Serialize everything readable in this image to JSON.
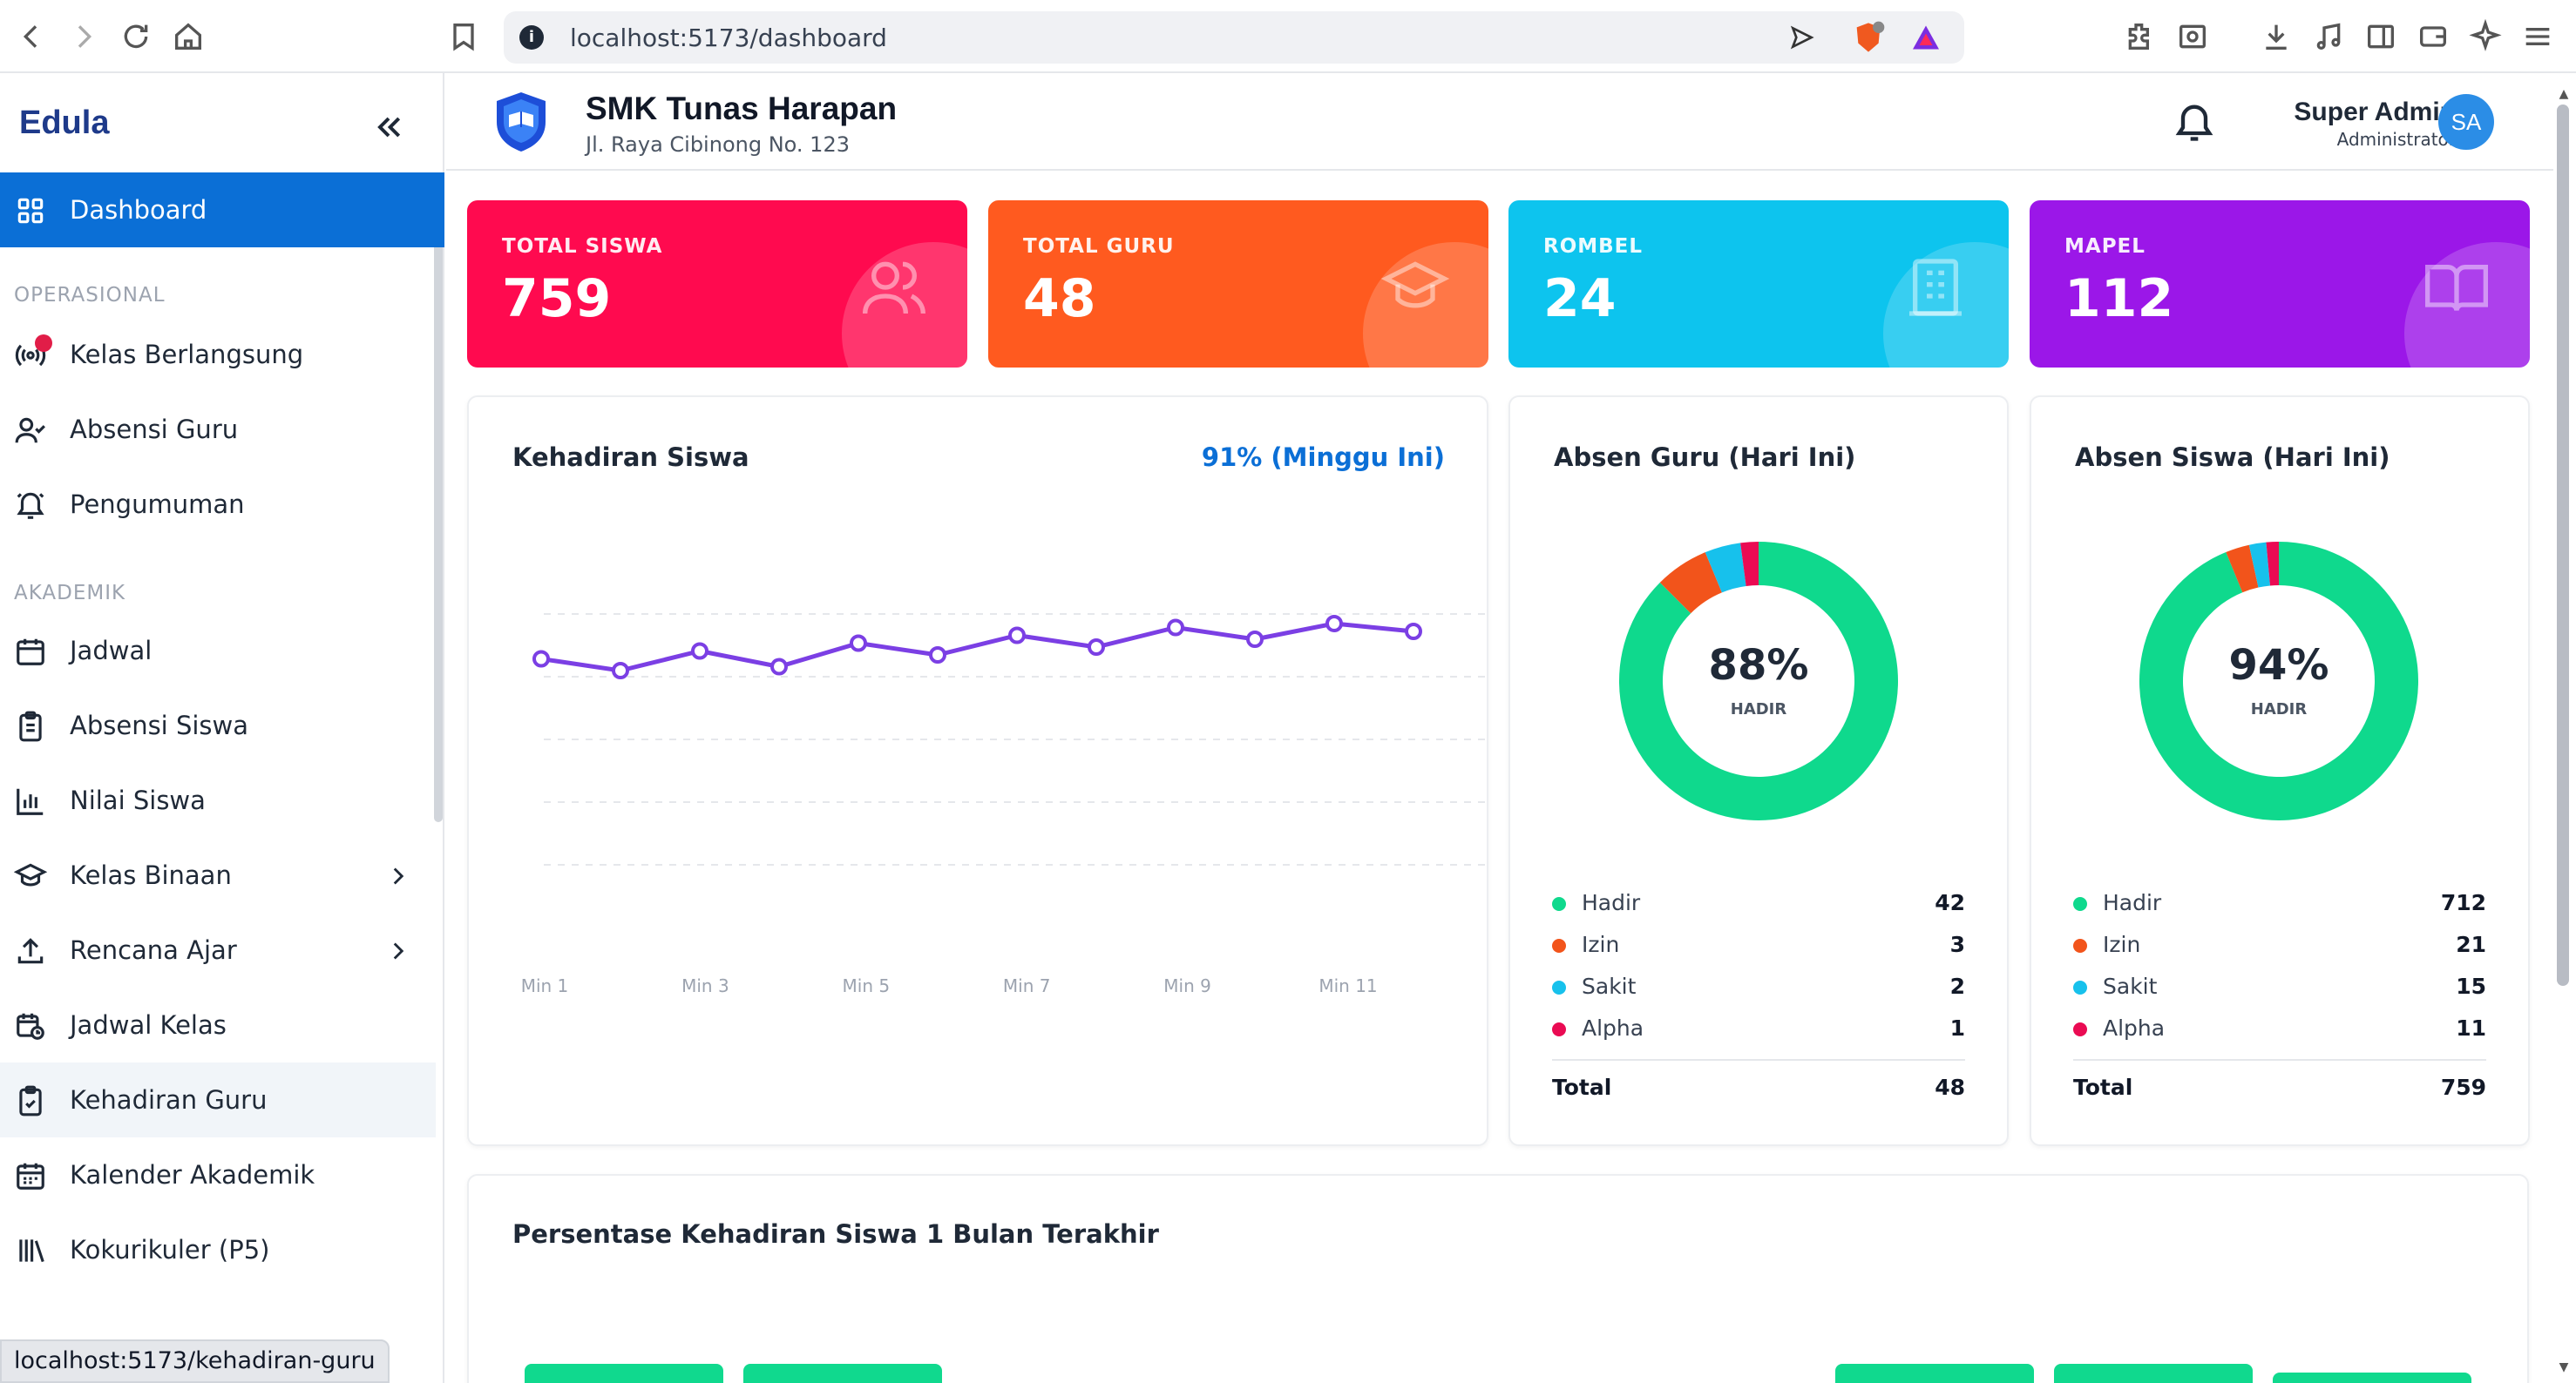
{
  "browser": {
    "url": "localhost:5173/dashboard",
    "status_url": "localhost:5173/kehadiran-guru"
  },
  "sidebar": {
    "brand": "Edula",
    "sections": {
      "operasional": "OPERASIONAL",
      "akademik": "AKADEMIK"
    },
    "items": [
      {
        "label": "Dashboard",
        "icon": "grid-icon",
        "active": true
      },
      {
        "label": "Kelas Berlangsung",
        "icon": "broadcast-icon"
      },
      {
        "label": "Absensi Guru",
        "icon": "user-check-icon"
      },
      {
        "label": "Pengumuman",
        "icon": "bell-ring-icon"
      },
      {
        "label": "Jadwal",
        "icon": "calendar-icon"
      },
      {
        "label": "Absensi Siswa",
        "icon": "clipboard-list-icon"
      },
      {
        "label": "Nilai Siswa",
        "icon": "bar-chart-icon"
      },
      {
        "label": "Kelas Binaan",
        "icon": "graduation-cap-icon",
        "expandable": true
      },
      {
        "label": "Rencana Ajar",
        "icon": "upload-icon",
        "expandable": true
      },
      {
        "label": "Jadwal Kelas",
        "icon": "calendar-clock-icon"
      },
      {
        "label": "Kehadiran Guru",
        "icon": "clipboard-check-icon",
        "hovered": true
      },
      {
        "label": "Kalender Akademik",
        "icon": "calendar-days-icon"
      },
      {
        "label": "Kokurikuler (P5)",
        "icon": "library-icon"
      }
    ]
  },
  "header": {
    "school_name": "SMK Tunas Harapan",
    "school_address": "Jl. Raya Cibinong No. 123",
    "user_name": "Super Admin",
    "user_role": "Administrator",
    "avatar_initials": "SA"
  },
  "stats": [
    {
      "title": "TOTAL SISWA",
      "value": "759",
      "color": "#ff0a4f",
      "icon": "users-icon"
    },
    {
      "title": "TOTAL GURU",
      "value": "48",
      "color": "#ff5a1f",
      "icon": "graduation-cap-icon"
    },
    {
      "title": "ROMBEL",
      "value": "24",
      "color": "#0dc4ee",
      "icon": "building-icon"
    },
    {
      "title": "MAPEL",
      "value": "112",
      "color": "#9b17e8",
      "icon": "book-open-icon"
    }
  ],
  "attendance_chart": {
    "title": "Kehadiran Siswa",
    "badge": "91% (Minggu Ini)"
  },
  "absen_guru": {
    "title": "Absen Guru (Hari Ini)",
    "center_value": "88%",
    "center_label": "HADIR",
    "legend": [
      {
        "name": "Hadir",
        "value": "42",
        "color": "#0fd98d"
      },
      {
        "name": "Izin",
        "value": "3",
        "color": "#f2541b"
      },
      {
        "name": "Sakit",
        "value": "2",
        "color": "#17c1ec"
      },
      {
        "name": "Alpha",
        "value": "1",
        "color": "#ea0b53"
      }
    ],
    "total_label": "Total",
    "total_value": "48"
  },
  "absen_siswa": {
    "title": "Absen Siswa (Hari Ini)",
    "center_value": "94%",
    "center_label": "HADIR",
    "legend": [
      {
        "name": "Hadir",
        "value": "712",
        "color": "#0fd98d"
      },
      {
        "name": "Izin",
        "value": "21",
        "color": "#f2541b"
      },
      {
        "name": "Sakit",
        "value": "15",
        "color": "#17c1ec"
      },
      {
        "name": "Alpha",
        "value": "11",
        "color": "#ea0b53"
      }
    ],
    "total_label": "Total",
    "total_value": "759"
  },
  "monthly": {
    "title": "Persentase Kehadiran Siswa 1 Bulan Terakhir"
  },
  "chart_data": [
    {
      "type": "line",
      "title": "Kehadiran Siswa",
      "x": [
        "Min 1",
        "Min 2",
        "Min 3",
        "Min 4",
        "Min 5",
        "Min 6",
        "Min 7",
        "Min 8",
        "Min 9",
        "Min 10",
        "Min 11",
        "Min 12"
      ],
      "tick_labels": [
        "Min 1",
        "Min 3",
        "Min 5",
        "Min 7",
        "Min 9",
        "Min 11"
      ],
      "series": [
        {
          "values": [
            91,
            88,
            93,
            89,
            95,
            92,
            97,
            94,
            99,
            96,
            100,
            98
          ]
        }
      ],
      "ylim": [
        0,
        100
      ],
      "grid": true,
      "color": "#7b3fe4"
    },
    {
      "type": "pie",
      "title": "Absen Guru (Hari Ini)",
      "categories": [
        "Hadir",
        "Izin",
        "Sakit",
        "Alpha"
      ],
      "values": [
        42,
        3,
        2,
        1
      ],
      "colors": [
        "#0fd98d",
        "#f2541b",
        "#17c1ec",
        "#ea0b53"
      ]
    },
    {
      "type": "pie",
      "title": "Absen Siswa (Hari Ini)",
      "categories": [
        "Hadir",
        "Izin",
        "Sakit",
        "Alpha"
      ],
      "values": [
        712,
        21,
        15,
        11
      ],
      "colors": [
        "#0fd98d",
        "#f2541b",
        "#17c1ec",
        "#ea0b53"
      ]
    },
    {
      "type": "bar",
      "title": "Persentase Kehadiran Siswa 1 Bulan Terakhir",
      "bars_visible": 5,
      "color": "#10d98e"
    }
  ]
}
